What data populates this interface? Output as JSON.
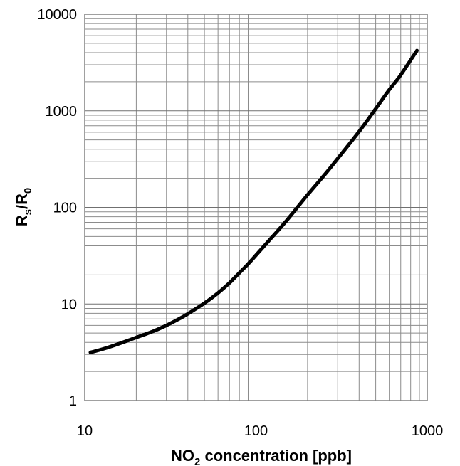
{
  "chart_data": {
    "type": "line",
    "xlabel": {
      "main": "NO",
      "sub": "2",
      "rest": " concentration [ppb]"
    },
    "ylabel": {
      "r1": "R",
      "s1": "s",
      "slash": "/R",
      "s2": "0"
    },
    "x_scale": "log",
    "y_scale": "log",
    "xlim": [
      10,
      1000
    ],
    "ylim": [
      1,
      10000
    ],
    "x_ticks": [
      {
        "value": 10,
        "label": "10"
      },
      {
        "value": 100,
        "label": "100"
      },
      {
        "value": 1000,
        "label": "1000"
      }
    ],
    "y_ticks": [
      {
        "value": 1,
        "label": "1"
      },
      {
        "value": 10,
        "label": "10"
      },
      {
        "value": 100,
        "label": "100"
      },
      {
        "value": 1000,
        "label": "1000"
      },
      {
        "value": 10000,
        "label": "10000"
      }
    ],
    "grid": true,
    "series": [
      {
        "color": "#000000",
        "x": [
          10.8,
          13,
          15,
          18,
          20,
          25,
          30,
          35,
          40,
          50,
          60,
          70,
          80,
          90,
          100,
          120,
          150,
          200,
          250,
          300,
          400,
          500,
          600,
          700,
          870
        ],
        "y": [
          3.15,
          3.45,
          3.75,
          4.2,
          4.5,
          5.2,
          6.0,
          6.9,
          7.9,
          10.2,
          13,
          16.5,
          21,
          26,
          32,
          46,
          72,
          135,
          215,
          320,
          610,
          1050,
          1650,
          2350,
          4200
        ]
      }
    ]
  }
}
